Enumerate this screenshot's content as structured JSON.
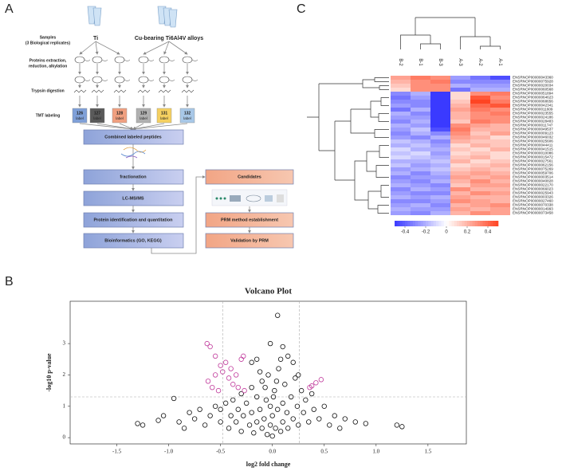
{
  "panel_a": {
    "letter": "A",
    "samples": "Samples",
    "replicates": "(3 Biological replicates)",
    "group_ti": "Ti",
    "group_cu": "Cu-bearing Ti6Al4V alloys",
    "step_extract": "Proteins extraction,",
    "step_extract2": "reduction, alkylation",
    "step_trypsin": "Trypsin digestion",
    "step_tmt": "TMT labeling",
    "tmt_labels": [
      "126",
      "127",
      "128",
      "129",
      "131",
      "132"
    ],
    "label_word": "label",
    "combined": "Combined labeled peptides",
    "fractionation": "fractionation",
    "lcms": "LC-MS/MS",
    "identification": "Protein identification and quantitation",
    "bioinformatics": "Bioinformatics (GO, KEGG)",
    "candidates": "Candidates",
    "prm_method": "PRM  method establishment",
    "validation": "Validation by PRM"
  },
  "panel_b_letter": "B",
  "panel_c_letter": "C",
  "chart_data": [
    {
      "type": "heatmap",
      "columns": [
        "B-2",
        "B-1",
        "B-3",
        "A-3",
        "A-2",
        "A-1"
      ],
      "rows": [
        "ENSRNOP00000043360",
        "ENSRNOP00000075928",
        "ENSRNOP00000020034",
        "ENSRNOP00000060568",
        "ENSRNOP00000051894",
        "ENSRNOP00000064623",
        "ENSRNOP00000068656",
        "ENSRNOP00000042341",
        "ENSRNOP00000011609",
        "ENSRNOP00000023555",
        "ENSRNOP00000024186",
        "ENSRNOP00000028483",
        "ENSRNOP00000011747",
        "ENSRNOP00000049537",
        "ENSRNOP00000009123",
        "ENSRNOP00000046032",
        "ENSRNOP00000025606",
        "ENSRNOP00000044411",
        "ENSRNOP00000041515",
        "ENSRNOP00000010086",
        "ENSRNOP00000015472",
        "ENSRNOP00000027561",
        "ENSRNOP00000062156",
        "ENSRNOP00000075269",
        "ENSRNOP00000059706",
        "ENSRNOP00000003514",
        "ENSRNOP00000040828",
        "ENSRNOP00000022170",
        "ENSRNOP00000066023",
        "ENSRNOP00000025943",
        "ENSRNOP00000003326",
        "ENSRNOP00000027460",
        "ENSRNOP00000070338",
        "ENSRNOP00000014993",
        "ENSRNOP00000073458"
      ],
      "values": [
        [
          0.25,
          0.35,
          0.3,
          -0.25,
          -0.35,
          -0.45
        ],
        [
          0.2,
          0.3,
          0.35,
          -0.3,
          -0.3,
          -0.3
        ],
        [
          0.15,
          0.3,
          0.3,
          -0.2,
          -0.25,
          -0.25
        ],
        [
          0.1,
          0.3,
          0.3,
          -0.35,
          -0.2,
          -0.2
        ],
        [
          -0.3,
          -0.2,
          -0.5,
          0.1,
          0.3,
          0.35
        ],
        [
          -0.35,
          -0.25,
          -0.5,
          0.1,
          0.45,
          0.3
        ],
        [
          -0.3,
          -0.3,
          -0.5,
          0.15,
          0.5,
          0.35
        ],
        [
          -0.25,
          -0.3,
          -0.5,
          0.2,
          0.4,
          0.45
        ],
        [
          -0.35,
          -0.2,
          -0.5,
          0.25,
          0.35,
          0.3
        ],
        [
          -0.2,
          -0.3,
          -0.5,
          0.2,
          0.3,
          0.35
        ],
        [
          -0.25,
          -0.25,
          -0.5,
          0.2,
          0.3,
          0.3
        ],
        [
          -0.3,
          -0.2,
          -0.5,
          0.15,
          0.35,
          0.3
        ],
        [
          -0.2,
          -0.25,
          -0.5,
          0.3,
          0.25,
          0.2
        ],
        [
          -0.25,
          -0.15,
          -0.45,
          0.35,
          0.2,
          0.2
        ],
        [
          -0.3,
          -0.2,
          -0.3,
          0.3,
          0.15,
          0.25
        ],
        [
          -0.25,
          -0.3,
          -0.2,
          0.25,
          0.2,
          0.1
        ],
        [
          -0.15,
          -0.2,
          -0.3,
          0.2,
          0.15,
          0.15
        ],
        [
          -0.2,
          -0.15,
          -0.25,
          0.1,
          0.2,
          0.15
        ],
        [
          -0.1,
          -0.2,
          -0.2,
          0.15,
          0.1,
          0.2
        ],
        [
          -0.15,
          -0.1,
          -0.25,
          0.1,
          0.15,
          0.1
        ],
        [
          -0.1,
          -0.15,
          -0.2,
          0.15,
          0.2,
          0.1
        ],
        [
          -0.2,
          -0.2,
          -0.15,
          0.2,
          0.1,
          0.15
        ],
        [
          -0.15,
          -0.25,
          -0.2,
          0.1,
          0.15,
          0.2
        ],
        [
          -0.25,
          -0.2,
          -0.15,
          0.15,
          0.2,
          0.15
        ],
        [
          -0.2,
          -0.3,
          -0.2,
          0.2,
          0.25,
          0.2
        ],
        [
          -0.3,
          -0.25,
          -0.25,
          0.25,
          0.2,
          0.25
        ],
        [
          -0.25,
          -0.3,
          -0.2,
          0.2,
          0.3,
          0.2
        ],
        [
          -0.2,
          -0.25,
          -0.3,
          0.15,
          0.25,
          0.25
        ],
        [
          -0.3,
          -0.2,
          -0.25,
          0.3,
          0.2,
          0.2
        ],
        [
          -0.25,
          -0.3,
          -0.3,
          0.2,
          0.3,
          0.25
        ],
        [
          -0.2,
          -0.25,
          -0.2,
          0.25,
          0.2,
          0.2
        ],
        [
          -0.3,
          -0.3,
          -0.25,
          0.3,
          0.25,
          0.2
        ],
        [
          -0.25,
          -0.2,
          -0.3,
          0.2,
          0.25,
          0.3
        ],
        [
          -0.2,
          -0.25,
          -0.25,
          0.25,
          0.2,
          0.25
        ],
        [
          -0.25,
          -0.3,
          -0.2,
          0.2,
          0.3,
          0.25
        ]
      ],
      "zlim": [
        -0.5,
        0.5
      ],
      "zticks": [
        -0.4,
        -0.2,
        0,
        0.2,
        0.4
      ],
      "colorscale": [
        "#3a3aff",
        "#ffffff",
        "#ff4422"
      ]
    },
    {
      "type": "scatter",
      "title": "Volcano Plot",
      "x_label": "log2 fold change",
      "y_label": "-log10 p-value",
      "xlim": [
        -1.95,
        1.87
      ],
      "ylim": [
        -0.2,
        4.35
      ],
      "xticks": [
        -1.5,
        {
          "value": -1,
          "label": "-1.0"
        },
        -0.5,
        {
          "value": 0,
          "label": "0.0"
        },
        0.5,
        {
          "value": 1,
          "label": "1.0"
        },
        1.5
      ],
      "yticks": [
        0,
        1,
        2,
        3
      ],
      "vlines": [
        -0.48,
        0.26
      ],
      "hline": 1.3,
      "series": [
        {
          "color": "#111111",
          "x": [
            -1.3,
            -1.25,
            -1.1,
            -1.05,
            -0.95,
            1.2,
            1.25,
            0.8,
            0.9,
            0.7,
            0.05,
            -0.02,
            0.1,
            0.15,
            0.2,
            -0.15,
            -0.2,
            0.25,
            -0.8,
            -0.75,
            -0.7,
            -0.65,
            -0.6,
            -0.55,
            -0.5,
            -0.5,
            -0.45,
            -0.42,
            -0.4,
            -0.38,
            -0.35,
            -0.33,
            -0.3,
            -0.3,
            -0.28,
            -0.25,
            -0.22,
            -0.2,
            -0.2,
            -0.18,
            -0.15,
            -0.15,
            -0.12,
            -0.1,
            -0.1,
            -0.08,
            -0.06,
            -0.05,
            -0.04,
            -0.02,
            0,
            0,
            0.02,
            0.03,
            0.05,
            0.06,
            0.08,
            0.1,
            0.1,
            0.12,
            0.14,
            0.15,
            0.18,
            0.2,
            0.22,
            0.24,
            0.25,
            0.28,
            0.3,
            0.32,
            0.35,
            0.38,
            0.4,
            0.45,
            0.5,
            0.55,
            0.6,
            0.65,
            -0.9,
            -0.85,
            -0.02,
            0.01,
            -0.07,
            0.04,
            0.08,
            -0.12
          ],
          "y": [
            0.45,
            0.4,
            0.55,
            0.7,
            1.25,
            0.4,
            0.35,
            0.5,
            0.45,
            0.6,
            3.9,
            3.0,
            2.9,
            2.6,
            2.4,
            2.5,
            2.4,
            2.0,
            0.8,
            0.6,
            0.9,
            0.4,
            0.7,
            1.0,
            0.5,
            0.9,
            1.1,
            0.3,
            0.7,
            1.2,
            0.5,
            0.9,
            1.4,
            0.2,
            0.7,
            1.1,
            0.4,
            1.6,
            0.8,
            0.15,
            1.3,
            0.5,
            0.9,
            1.8,
            0.3,
            0.6,
            1.2,
            0.1,
            2.0,
            0.4,
            0.7,
            0.05,
            1.5,
            0.3,
            0.9,
            2.2,
            0.2,
            1.1,
            0.5,
            1.7,
            0.8,
            0.3,
            1.3,
            0.6,
            1.9,
            1.0,
            0.4,
            1.5,
            0.8,
            1.2,
            0.5,
            1.4,
            0.9,
            0.6,
            1.0,
            0.4,
            0.7,
            0.3,
            0.5,
            0.3,
            1.0,
            1.3,
            1.6,
            1.8,
            2.5,
            2.1
          ]
        },
        {
          "color": "#c0399b",
          "x": [
            -0.63,
            -0.6,
            -0.55,
            -0.5,
            -0.48,
            -0.45,
            -0.42,
            -0.4,
            -0.38,
            -0.35,
            -0.33,
            -0.3,
            -0.28,
            -0.27,
            -0.62,
            -0.58,
            -0.52,
            -0.55,
            0.36,
            0.38,
            0.42,
            0.47
          ],
          "y": [
            3.0,
            2.9,
            2.6,
            2.3,
            2.1,
            2.4,
            1.9,
            2.2,
            1.7,
            2.0,
            1.6,
            2.5,
            2.6,
            1.5,
            1.8,
            1.6,
            1.5,
            2.0,
            1.6,
            1.65,
            1.75,
            1.85
          ]
        }
      ]
    }
  ]
}
